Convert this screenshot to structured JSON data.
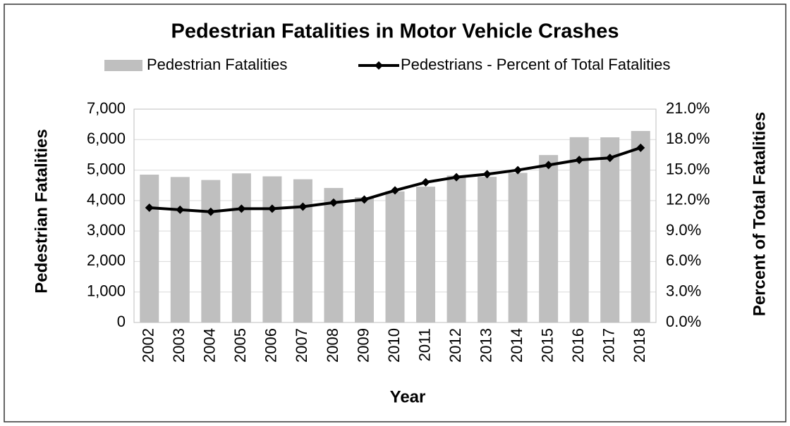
{
  "chart_data": {
    "type": "bar",
    "title": "Pedestrian Fatalities in Motor Vehicle Crashes",
    "x_label": "Year",
    "y_label": "Pedestrian Fatalities",
    "y2_label": "Percent of Total Fatalities",
    "categories": [
      "2002",
      "2003",
      "2004",
      "2005",
      "2006",
      "2007",
      "2008",
      "2009",
      "2010",
      "2011",
      "2012",
      "2013",
      "2014",
      "2015",
      "2016",
      "2017",
      "2018"
    ],
    "series": [
      {
        "name": "Pedestrian Fatalities",
        "type": "bar",
        "color": "#bfbfbf",
        "values": [
          4851,
          4774,
          4675,
          4892,
          4795,
          4699,
          4414,
          4109,
          4302,
          4457,
          4818,
          4779,
          4910,
          5494,
          6080,
          6075,
          6283
        ]
      },
      {
        "name": "Pedestrians - Percent of Total Fatalities",
        "type": "line",
        "color": "#000000",
        "axis": "y2",
        "values": [
          11.3,
          11.1,
          10.9,
          11.2,
          11.2,
          11.4,
          11.8,
          12.1,
          13.0,
          13.8,
          14.3,
          14.6,
          15.0,
          15.5,
          16.0,
          16.2,
          17.2
        ]
      }
    ],
    "ylim": [
      0,
      7000
    ],
    "yticks": [
      0,
      {
        "value": 1000,
        "label": "1,000"
      },
      {
        "value": 2000,
        "label": "2,000"
      },
      {
        "value": 3000,
        "label": "3,000"
      },
      {
        "value": 4000,
        "label": "4,000"
      },
      {
        "value": 5000,
        "label": "5,000"
      },
      {
        "value": 6000,
        "label": "6,000"
      },
      {
        "value": 7000,
        "label": "7,000"
      }
    ],
    "y2lim": [
      0,
      21
    ],
    "y2ticks": [
      {
        "value": 0,
        "label": "0.0%"
      },
      {
        "value": 3,
        "label": "3.0%"
      },
      {
        "value": 6,
        "label": "6.0%"
      },
      {
        "value": 9,
        "label": "9.0%"
      },
      {
        "value": 12,
        "label": "12.0%"
      },
      {
        "value": 15,
        "label": "15.0%"
      },
      {
        "value": 18,
        "label": "18.0%"
      },
      {
        "value": 21,
        "label": "21.0%"
      }
    ],
    "grid": true,
    "legend": "top"
  }
}
